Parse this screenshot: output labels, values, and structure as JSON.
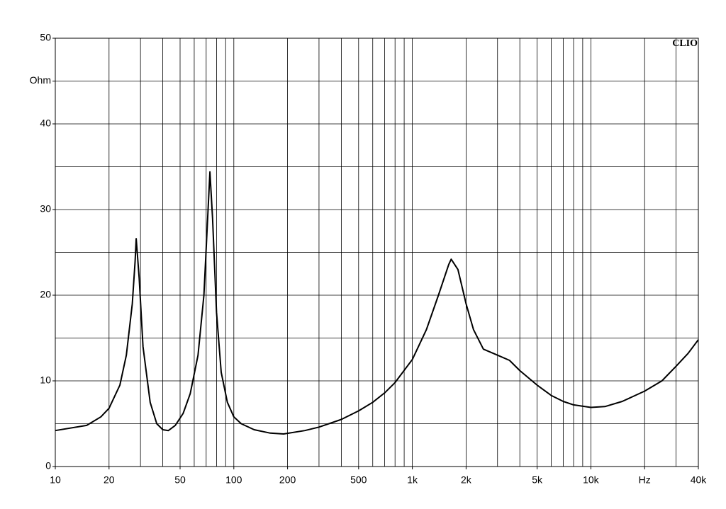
{
  "chart_data": {
    "type": "line",
    "annotation": "CLIO",
    "xscale": "log",
    "grid": true,
    "xlim": [
      10,
      40000
    ],
    "ylim": [
      0,
      50
    ],
    "xticks": [
      10,
      20,
      50,
      100,
      200,
      500,
      {
        "value": 1000,
        "label": "1k"
      },
      {
        "value": 2000,
        "label": "2k"
      },
      {
        "value": 5000,
        "label": "5k"
      },
      {
        "value": 10000,
        "label": "10k"
      },
      {
        "value": 20000,
        "label": "Hz"
      },
      {
        "value": 40000,
        "label": "40k"
      }
    ],
    "yticks": [
      0,
      10,
      20,
      30,
      40,
      {
        "value": 45,
        "label": "Ohm"
      },
      50
    ],
    "xgrid": [
      20,
      30,
      40,
      50,
      60,
      70,
      80,
      90,
      100,
      200,
      300,
      400,
      500,
      600,
      700,
      800,
      900,
      1000,
      2000,
      3000,
      4000,
      5000,
      6000,
      7000,
      8000,
      9000,
      10000,
      20000,
      30000
    ],
    "ygrid": [
      5,
      10,
      15,
      20,
      25,
      30,
      35,
      40,
      45
    ],
    "series": [
      {
        "color": "#000000",
        "x": [
          10,
          15,
          18,
          20,
          23,
          25,
          27,
          28,
          28.4,
          29.5,
          31,
          34,
          37,
          40,
          43,
          47,
          52,
          57,
          63,
          68,
          71,
          73.5,
          76,
          80,
          85,
          92,
          100,
          110,
          130,
          160,
          190,
          250,
          300,
          400,
          500,
          600,
          700,
          800,
          1000,
          1200,
          1400,
          1600,
          1650,
          1800,
          2000,
          2200,
          2500,
          3000,
          3500,
          4000,
          5000,
          6000,
          7000,
          8000,
          10000,
          12000,
          15000,
          20000,
          25000,
          30000,
          35000,
          40000
        ],
        "values": [
          4.2,
          4.8,
          5.8,
          6.8,
          9.5,
          13,
          19,
          24,
          26.6,
          22,
          14,
          7.5,
          5,
          4.3,
          4.2,
          4.8,
          6.2,
          8.5,
          13,
          20,
          28,
          34.4,
          29,
          18,
          11,
          7.5,
          5.8,
          5,
          4.3,
          3.9,
          3.8,
          4.2,
          4.6,
          5.5,
          6.5,
          7.5,
          8.6,
          9.8,
          12.5,
          16,
          20,
          23.6,
          24.2,
          23,
          19,
          16,
          13.7,
          13,
          12.4,
          11.2,
          9.5,
          8.3,
          7.6,
          7.2,
          6.9,
          7,
          7.6,
          8.8,
          10,
          11.7,
          13.2,
          14.8
        ]
      }
    ]
  }
}
